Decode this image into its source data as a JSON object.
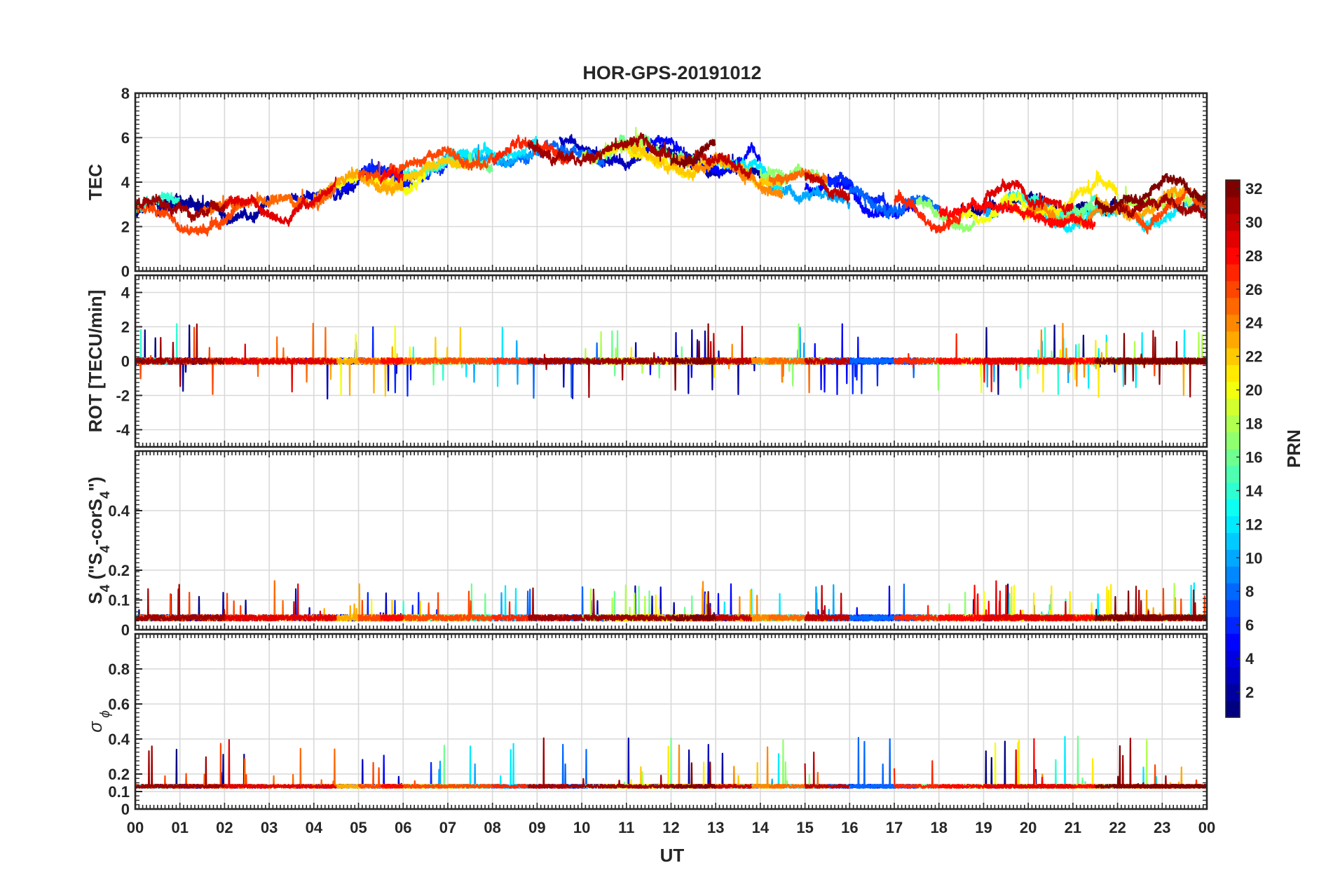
{
  "chart_data": {
    "type": "line",
    "title": "HOR-GPS-20191012",
    "xlabel": "UT",
    "x_range_hours": [
      0,
      24
    ],
    "x_tick_labels": [
      "00",
      "01",
      "02",
      "03",
      "04",
      "05",
      "06",
      "07",
      "08",
      "09",
      "10",
      "11",
      "12",
      "13",
      "14",
      "15",
      "16",
      "17",
      "18",
      "19",
      "20",
      "21",
      "22",
      "23",
      "00"
    ],
    "grid": true,
    "colorbar": {
      "label": "PRN",
      "range": [
        1,
        32
      ],
      "tick_labels": [
        "2",
        "4",
        "6",
        "8",
        "10",
        "12",
        "14",
        "16",
        "18",
        "20",
        "22",
        "24",
        "26",
        "28",
        "30",
        "32"
      ],
      "colormap": "jet",
      "placement": "right"
    },
    "panels": [
      {
        "id": "tec",
        "ylabel": "TEC",
        "ylabel_parts": [
          {
            "t": "TEC"
          }
        ],
        "ylim": [
          0,
          8
        ],
        "y_ticks": [
          0,
          2,
          4,
          6,
          8
        ],
        "y_tick_labels": [
          "0",
          "2",
          "4",
          "6",
          "8"
        ],
        "base": 3.5,
        "amp": 2.0,
        "noise": 0.35,
        "spike": 0.4,
        "spike_prob": 0.01,
        "profile": "tec"
      },
      {
        "id": "rot",
        "ylabel": "ROT [TECU/min]",
        "ylabel_parts": [
          {
            "t": "ROT [TECU/min]"
          }
        ],
        "ylim": [
          -5,
          5
        ],
        "y_ticks": [
          -4,
          -2,
          0,
          2,
          4
        ],
        "y_tick_labels": [
          "-4",
          "-2",
          "0",
          "2",
          "4"
        ],
        "base": 0,
        "amp": 0,
        "noise": 0.18,
        "spike": 2.2,
        "spike_prob": 0.012,
        "profile": "rot"
      },
      {
        "id": "s4",
        "ylabel": "S4 (\"S4-corS4\")",
        "ylabel_parts": [
          {
            "t": "S"
          },
          {
            "t": "4",
            "sub": true
          },
          {
            "t": " (\"S"
          },
          {
            "t": "4",
            "sub": true
          },
          {
            "t": "-corS"
          },
          {
            "t": "4",
            "sub": true
          },
          {
            "t": "\")"
          }
        ],
        "ylim": [
          0,
          0.6
        ],
        "y_ticks": [
          0,
          0.1,
          0.2,
          0.4
        ],
        "y_tick_labels": [
          "0",
          "0.1",
          "0.2",
          "0.4"
        ],
        "base": 0.03,
        "amp": 0,
        "noise": 0.02,
        "spike": 0.12,
        "spike_prob": 0.01,
        "profile": "scint"
      },
      {
        "id": "sigma_phi",
        "ylabel": "σ ϕ",
        "ylabel_parts": [
          {
            "t": "σ",
            "italic": true
          },
          {
            "t": " ϕ",
            "sub": true,
            "italic": true
          }
        ],
        "ylim": [
          0,
          1.0
        ],
        "y_ticks": [
          0,
          0.1,
          0.2,
          0.4,
          0.6,
          0.8
        ],
        "y_tick_labels": [
          "0",
          "0.1",
          "0.2",
          "0.4",
          "0.6",
          "0.8"
        ],
        "base": 0.12,
        "amp": 0,
        "noise": 0.02,
        "spike": 0.28,
        "spike_prob": 0.006,
        "profile": "scint"
      }
    ],
    "series": [
      {
        "prn": 1,
        "segments": [
          [
            0.0,
            1.5
          ],
          [
            18.5,
            22.0
          ]
        ]
      },
      {
        "prn": 2,
        "segments": [
          [
            0.5,
            3.0
          ],
          [
            12.0,
            14.0
          ]
        ]
      },
      {
        "prn": 3,
        "segments": [
          [
            3.5,
            6.0
          ],
          [
            9.5,
            13.0
          ]
        ]
      },
      {
        "prn": 5,
        "segments": [
          [
            4.5,
            6.2
          ],
          [
            11.5,
            14.0
          ],
          [
            15.0,
            17.5
          ]
        ]
      },
      {
        "prn": 6,
        "segments": [
          [
            5.0,
            7.0
          ],
          [
            15.5,
            17.0
          ]
        ]
      },
      {
        "prn": 8,
        "segments": [
          [
            8.0,
            10.5
          ],
          [
            16.0,
            18.0
          ]
        ]
      },
      {
        "prn": 10,
        "segments": [
          [
            6.6,
            9.0
          ],
          [
            14.0,
            16.0
          ],
          [
            19.0,
            21.0
          ]
        ]
      },
      {
        "prn": 12,
        "segments": [
          [
            7.0,
            9.0
          ],
          [
            13.0,
            14.5
          ],
          [
            20.0,
            24.0
          ]
        ]
      },
      {
        "prn": 14,
        "segments": [
          [
            0.0,
            1.0
          ],
          [
            6.0,
            7.0
          ],
          [
            19.5,
            21.5
          ]
        ]
      },
      {
        "prn": 16,
        "segments": [
          [
            6.5,
            8.0
          ],
          [
            10.5,
            12.5
          ],
          [
            20.5,
            21.5
          ]
        ]
      },
      {
        "prn": 17,
        "segments": [
          [
            14.0,
            15.5
          ],
          [
            17.5,
            18.8
          ]
        ]
      },
      {
        "prn": 18,
        "segments": [
          [
            10.0,
            11.5
          ],
          [
            22.0,
            24.0
          ]
        ]
      },
      {
        "prn": 20,
        "segments": [
          [
            4.5,
            6.5
          ],
          [
            18.5,
            20.5
          ]
        ]
      },
      {
        "prn": 21,
        "segments": [
          [
            10.5,
            13.0
          ],
          [
            19.5,
            22.0
          ]
        ]
      },
      {
        "prn": 22,
        "segments": [
          [
            5.5,
            7.5
          ],
          [
            11.0,
            14.5
          ]
        ]
      },
      {
        "prn": 23,
        "segments": [
          [
            4.0,
            6.0
          ],
          [
            21.5,
            23.5
          ]
        ]
      },
      {
        "prn": 24,
        "segments": [
          [
            12.0,
            14.5
          ],
          [
            20.0,
            21.8
          ]
        ]
      },
      {
        "prn": 25,
        "segments": [
          [
            1.5,
            4.5
          ],
          [
            14.2,
            15.5
          ]
        ]
      },
      {
        "prn": 26,
        "segments": [
          [
            0.0,
            2.5
          ],
          [
            5.0,
            8.0
          ],
          [
            22.0,
            24.0
          ]
        ]
      },
      {
        "prn": 27,
        "segments": [
          [
            8.0,
            9.7
          ],
          [
            17.0,
            18.5
          ]
        ]
      },
      {
        "prn": 28,
        "segments": [
          [
            5.5,
            6.0
          ],
          [
            18.0,
            21.5
          ]
        ]
      },
      {
        "prn": 29,
        "segments": [
          [
            2.0,
            4.5
          ],
          [
            19.0,
            21.0
          ]
        ]
      },
      {
        "prn": 30,
        "segments": [
          [
            12.5,
            13.8
          ],
          [
            15.0,
            16.0
          ]
        ]
      },
      {
        "prn": 31,
        "segments": [
          [
            0.0,
            2.0
          ],
          [
            8.8,
            12.0
          ],
          [
            22.0,
            24.0
          ]
        ]
      },
      {
        "prn": 32,
        "segments": [
          [
            12.0,
            13.0
          ],
          [
            21.5,
            24.0
          ]
        ]
      }
    ]
  }
}
